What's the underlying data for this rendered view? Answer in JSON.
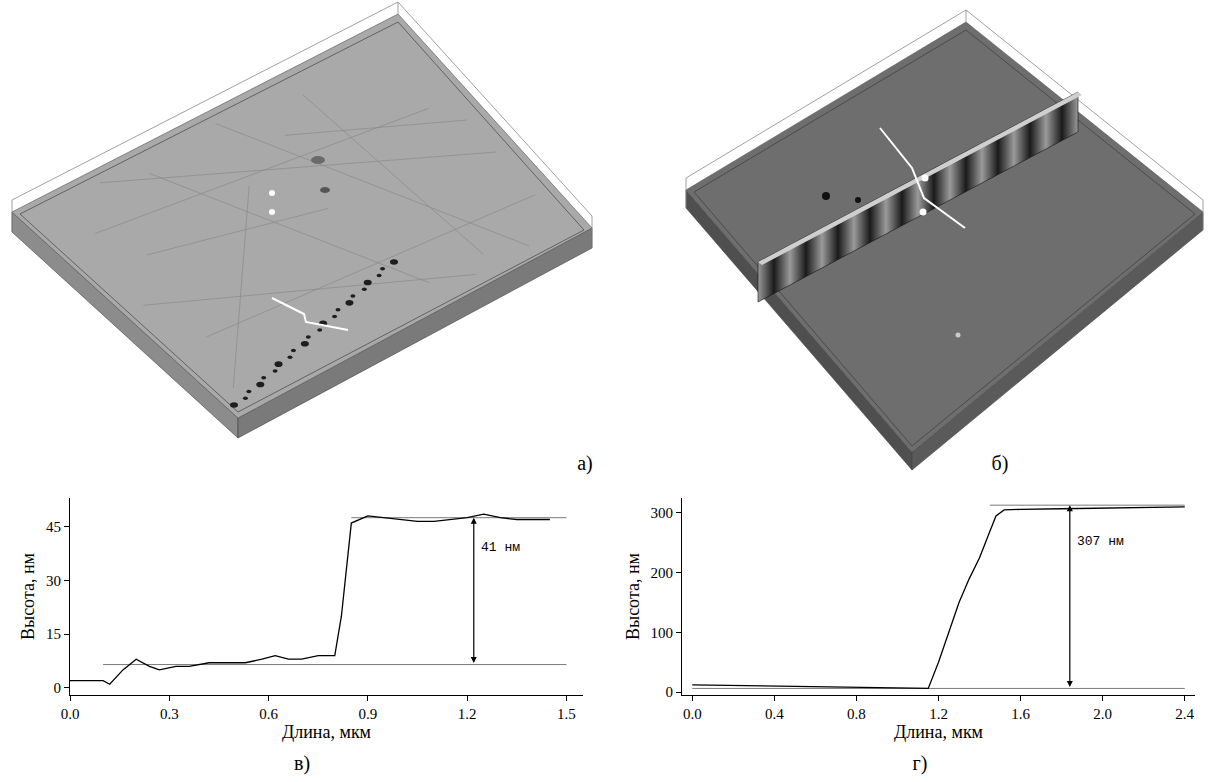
{
  "images": [
    {
      "label": "а)"
    },
    {
      "label": "б)"
    }
  ],
  "chart_data": [
    {
      "type": "line",
      "label": "в)",
      "x_label": "Длина, мкм",
      "y_label": "Высота, нм",
      "x": [
        0.0,
        0.05,
        0.1,
        0.12,
        0.16,
        0.2,
        0.24,
        0.27,
        0.32,
        0.36,
        0.42,
        0.47,
        0.53,
        0.58,
        0.62,
        0.66,
        0.7,
        0.75,
        0.8,
        0.82,
        0.85,
        0.9,
        0.95,
        1.0,
        1.05,
        1.1,
        1.15,
        1.2,
        1.25,
        1.3,
        1.35,
        1.4,
        1.45
      ],
      "series": [
        {
          "name": null,
          "color": "#000000",
          "values": [
            2,
            2,
            2,
            1,
            5,
            8,
            6,
            5,
            6,
            6,
            7,
            7,
            7,
            8,
            9,
            8,
            8,
            9,
            9,
            20,
            46,
            48,
            47.5,
            47,
            46.5,
            46.5,
            47,
            47.5,
            48.5,
            47.5,
            47,
            47,
            47
          ]
        }
      ],
      "levels": [
        {
          "y": 6.5,
          "x0": 0.1,
          "x1": 1.5
        },
        {
          "y": 47.5,
          "x0": 0.85,
          "x1": 1.5
        }
      ],
      "annotations": [
        {
          "text": "41 нм",
          "x": 1.22,
          "y0": 6.5,
          "y1": 47.5
        }
      ],
      "xlim": [
        0,
        1.55
      ],
      "xticks": [
        {
          "value": 0,
          "label": "0.0"
        },
        0.3,
        0.6,
        0.9,
        1.2,
        1.5
      ],
      "ylim": [
        -2,
        53
      ],
      "yticks": [
        0,
        15,
        30,
        45
      ],
      "grid": false
    },
    {
      "type": "line",
      "label": "г)",
      "x_label": "Длина, мкм",
      "y_label": "Высота, нм",
      "x": [
        0.0,
        0.2,
        0.4,
        0.6,
        0.8,
        1.0,
        1.15,
        1.2,
        1.25,
        1.3,
        1.35,
        1.4,
        1.44,
        1.48,
        1.52,
        1.6,
        1.8,
        2.0,
        2.2,
        2.4
      ],
      "series": [
        {
          "name": null,
          "color": "#000000",
          "values": [
            12,
            11,
            10,
            9,
            8,
            7,
            6,
            50,
            100,
            150,
            190,
            225,
            260,
            295,
            305,
            306,
            307,
            308,
            309,
            310
          ]
        }
      ],
      "levels": [
        {
          "y": 6,
          "x0": 0.0,
          "x1": 2.4
        },
        {
          "y": 313,
          "x0": 1.45,
          "x1": 2.4
        }
      ],
      "annotations": [
        {
          "text": "307 нм",
          "x": 1.84,
          "y0": 6,
          "y1": 313
        }
      ],
      "xlim": [
        -0.05,
        2.45
      ],
      "xticks": [
        {
          "value": 0,
          "label": "0.0"
        },
        0.4,
        0.8,
        1.2,
        1.6,
        {
          "value": 2,
          "label": "2.0"
        },
        2.4
      ],
      "ylim": [
        -5,
        325
      ],
      "yticks": [
        0,
        100,
        200,
        300
      ],
      "grid": false
    }
  ]
}
